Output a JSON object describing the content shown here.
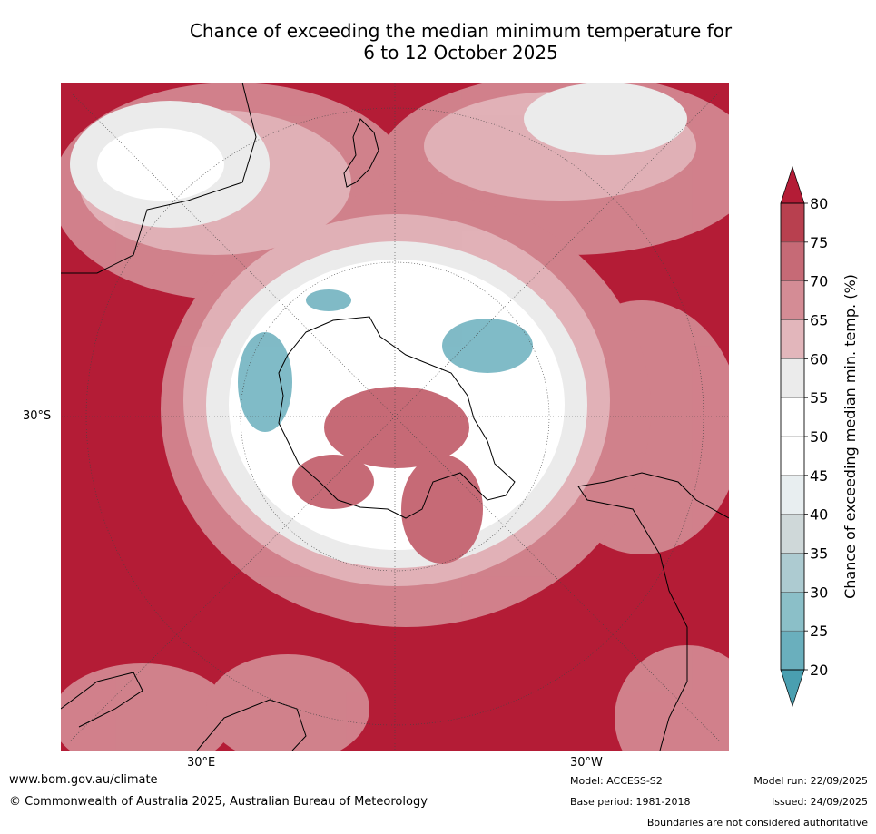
{
  "title": {
    "line1": "Chance of exceeding the median minimum temperature for",
    "line2": "6 to 12 October 2025"
  },
  "map": {
    "lat_label": "30°S",
    "lon_labels": [
      "30°E",
      "30°W"
    ]
  },
  "colorbar": {
    "label": "Chance of exceeding median min. temp. (%)",
    "ticks": [
      "20",
      "25",
      "30",
      "35",
      "40",
      "45",
      "50",
      "55",
      "60",
      "65",
      "70",
      "75",
      "80"
    ],
    "colors": [
      "#4a9fb0",
      "#6aafbd",
      "#8bbfc8",
      "#adcbd1",
      "#cfd8d9",
      "#e8eef0",
      "#ffffff",
      "#ffffff",
      "#ebebeb",
      "#e2b6bb",
      "#d48c95",
      "#c66a76",
      "#b8404f",
      "#b41c36"
    ],
    "under_color": "#4a9fb0",
    "over_color": "#b41c36"
  },
  "footer": {
    "website": "www.bom.gov.au/climate",
    "copyright": "© Commonwealth of Australia 2025, Australian Bureau of Meteorology",
    "model": "Model: ACCESS-S2",
    "base_period": "Base period: 1981-2018",
    "model_run": "Model run: 22/09/2025",
    "issued": "Issued: 24/09/2025",
    "disclaimer": "Boundaries are not considered authoritative"
  }
}
